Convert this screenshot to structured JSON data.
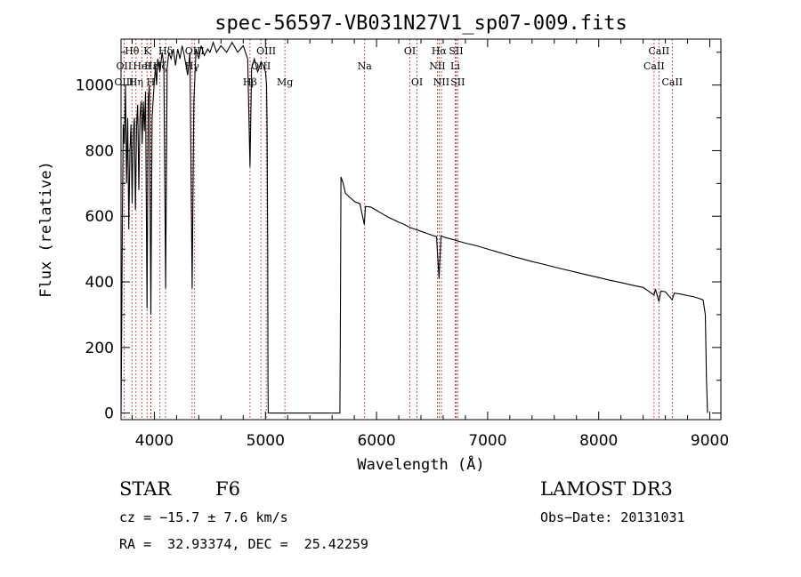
{
  "chart_data": {
    "type": "line",
    "title": "spec-56597-VB031N27V1_sp07-009.fits",
    "xlabel": "Wavelength (Å)",
    "ylabel": "Flux (relative)",
    "xlim": [
      3700,
      9100
    ],
    "ylim": [
      -20,
      1140
    ],
    "x_ticks": [
      4000,
      5000,
      6000,
      7000,
      8000,
      9000
    ],
    "y_ticks": [
      0,
      200,
      400,
      600,
      800,
      1000
    ],
    "x_tick_labels": [
      "4000",
      "5000",
      "6000",
      "7000",
      "8000",
      "9000"
    ],
    "y_tick_labels": [
      "0",
      "200",
      "400",
      "600",
      "800",
      "1000"
    ],
    "series": [
      {
        "name": "flux",
        "points": [
          [
            3700,
            0
          ],
          [
            3705,
            200
          ],
          [
            3712,
            600
          ],
          [
            3720,
            880
          ],
          [
            3730,
            820
          ],
          [
            3740,
            1000
          ],
          [
            3750,
            700
          ],
          [
            3760,
            900
          ],
          [
            3770,
            560
          ],
          [
            3780,
            800
          ],
          [
            3790,
            880
          ],
          [
            3800,
            640
          ],
          [
            3810,
            850
          ],
          [
            3820,
            900
          ],
          [
            3830,
            620
          ],
          [
            3840,
            880
          ],
          [
            3850,
            940
          ],
          [
            3860,
            680
          ],
          [
            3870,
            900
          ],
          [
            3880,
            950
          ],
          [
            3890,
            820
          ],
          [
            3900,
            950
          ],
          [
            3910,
            860
          ],
          [
            3920,
            980
          ],
          [
            3934,
            320
          ],
          [
            3945,
            960
          ],
          [
            3955,
            1000
          ],
          [
            3968,
            300
          ],
          [
            3980,
            900
          ],
          [
            3990,
            960
          ],
          [
            4000,
            1010
          ],
          [
            4010,
            1060
          ],
          [
            4020,
            1000
          ],
          [
            4030,
            1080
          ],
          [
            4050,
            1040
          ],
          [
            4070,
            1100
          ],
          [
            4085,
            1060
          ],
          [
            4101,
            380
          ],
          [
            4115,
            1050
          ],
          [
            4130,
            1100
          ],
          [
            4150,
            1080
          ],
          [
            4170,
            1110
          ],
          [
            4190,
            1060
          ],
          [
            4210,
            1110
          ],
          [
            4230,
            1080
          ],
          [
            4250,
            1120
          ],
          [
            4270,
            1090
          ],
          [
            4300,
            1030
          ],
          [
            4320,
            1100
          ],
          [
            4340,
            380
          ],
          [
            4355,
            950
          ],
          [
            4375,
            1110
          ],
          [
            4400,
            1080
          ],
          [
            4420,
            1120
          ],
          [
            4450,
            1090
          ],
          [
            4480,
            1110
          ],
          [
            4500,
            1100
          ],
          [
            4530,
            1130
          ],
          [
            4560,
            1100
          ],
          [
            4600,
            1120
          ],
          [
            4650,
            1100
          ],
          [
            4700,
            1130
          ],
          [
            4750,
            1100
          ],
          [
            4800,
            1120
          ],
          [
            4840,
            1080
          ],
          [
            4861,
            750
          ],
          [
            4875,
            1050
          ],
          [
            4900,
            1080
          ],
          [
            4930,
            1040
          ],
          [
            4960,
            1070
          ],
          [
            4980,
            1060
          ],
          [
            5000,
            1040
          ],
          [
            5010,
            1000
          ],
          [
            5015,
            880
          ],
          [
            5020,
            500
          ],
          [
            5023,
            100
          ],
          [
            5025,
            0
          ],
          [
            5670,
            0
          ],
          [
            5675,
            300
          ],
          [
            5680,
            720
          ],
          [
            5690,
            710
          ],
          [
            5700,
            700
          ],
          [
            5720,
            670
          ],
          [
            5750,
            660
          ],
          [
            5780,
            652
          ],
          [
            5800,
            645
          ],
          [
            5850,
            638
          ],
          [
            5890,
            575
          ],
          [
            5900,
            630
          ],
          [
            5950,
            628
          ],
          [
            6000,
            618
          ],
          [
            6050,
            608
          ],
          [
            6100,
            598
          ],
          [
            6150,
            590
          ],
          [
            6200,
            582
          ],
          [
            6250,
            575
          ],
          [
            6300,
            566
          ],
          [
            6350,
            560
          ],
          [
            6400,
            554
          ],
          [
            6450,
            548
          ],
          [
            6500,
            542
          ],
          [
            6540,
            538
          ],
          [
            6563,
            410
          ],
          [
            6580,
            540
          ],
          [
            6620,
            535
          ],
          [
            6700,
            528
          ],
          [
            6800,
            518
          ],
          [
            6900,
            510
          ],
          [
            7000,
            500
          ],
          [
            7100,
            490
          ],
          [
            7200,
            480
          ],
          [
            7300,
            471
          ],
          [
            7400,
            462
          ],
          [
            7500,
            454
          ],
          [
            7600,
            445
          ],
          [
            7700,
            437
          ],
          [
            7800,
            429
          ],
          [
            7900,
            421
          ],
          [
            8000,
            413
          ],
          [
            8100,
            405
          ],
          [
            8200,
            398
          ],
          [
            8300,
            390
          ],
          [
            8400,
            383
          ],
          [
            8498,
            360
          ],
          [
            8510,
            378
          ],
          [
            8542,
            340
          ],
          [
            8560,
            372
          ],
          [
            8600,
            370
          ],
          [
            8662,
            345
          ],
          [
            8680,
            366
          ],
          [
            8750,
            362
          ],
          [
            8800,
            358
          ],
          [
            8850,
            355
          ],
          [
            8900,
            350
          ],
          [
            8940,
            345
          ],
          [
            8960,
            300
          ],
          [
            8970,
            100
          ],
          [
            8980,
            0
          ]
        ]
      }
    ],
    "line_markers": [
      {
        "label": "Hθ",
        "wavelength": 3798,
        "row": 1
      },
      {
        "label": "OII",
        "wavelength": 3727,
        "row": 2
      },
      {
        "label": "OIII",
        "wavelength": 3727,
        "row": 3
      },
      {
        "label": "K",
        "wavelength": 3934,
        "row": 1
      },
      {
        "label": "HeI",
        "wavelength": 3889,
        "row": 2
      },
      {
        "label": "Hη",
        "wavelength": 3835,
        "row": 3
      },
      {
        "label": "H",
        "wavelength": 3968,
        "row": 3
      },
      {
        "label": "Hδ",
        "wavelength": 4101,
        "row": 1
      },
      {
        "label": "Hζ",
        "wavelength": 4050,
        "row": 2
      },
      {
        "label": "Hε",
        "wavelength": 3970,
        "row": 2
      },
      {
        "label": "OIII",
        "wavelength": 4363,
        "row": 1
      },
      {
        "label": "Hγ",
        "wavelength": 4340,
        "row": 2
      },
      {
        "label": "Hβ",
        "wavelength": 4861,
        "row": 3
      },
      {
        "label": "OIII",
        "wavelength": 5007,
        "row": 1
      },
      {
        "label": "OIII",
        "wavelength": 4959,
        "row": 2
      },
      {
        "label": "Mg",
        "wavelength": 5175,
        "row": 3
      },
      {
        "label": "Na",
        "wavelength": 5893,
        "row": 2
      },
      {
        "label": "OI",
        "wavelength": 6300,
        "row": 1
      },
      {
        "label": "OI",
        "wavelength": 6364,
        "row": 3
      },
      {
        "label": "Hα",
        "wavelength": 6563,
        "row": 1
      },
      {
        "label": "SII",
        "wavelength": 6716,
        "row": 1
      },
      {
        "label": "NII",
        "wavelength": 6548,
        "row": 2
      },
      {
        "label": "Li",
        "wavelength": 6708,
        "row": 2
      },
      {
        "label": "NII",
        "wavelength": 6584,
        "row": 3
      },
      {
        "label": "SII",
        "wavelength": 6731,
        "row": 3
      },
      {
        "label": "CaII",
        "wavelength": 8542,
        "row": 1
      },
      {
        "label": "CaII",
        "wavelength": 8498,
        "row": 2
      },
      {
        "label": "CaII",
        "wavelength": 8662,
        "row": 3
      }
    ],
    "annotations": {
      "object_class": "STAR",
      "subclass": "F6",
      "survey": "LAMOST DR3",
      "cz": "cz = −15.7 ± 7.6 km/s",
      "obs_date": "Obs−Date: 20131031",
      "coords": "RA =  32.93374, DEC =  25.42259"
    }
  }
}
